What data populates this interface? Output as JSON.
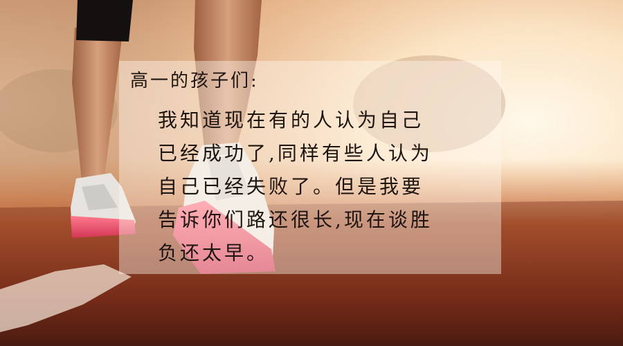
{
  "photo": {
    "subject": "runner-feet-on-track-at-sunrise",
    "colors": {
      "sky_glow": "#fff6e6",
      "haze": "#f2c79a",
      "track": "#b04a2a",
      "track_dark": "#3a1a10",
      "shoe_sole": "#f0506e",
      "shoe_body": "#e8e4e0",
      "skin": "#c98a64"
    }
  },
  "note": {
    "salutation": "高一的孩子们:",
    "lines": [
      "我知道现在有的人认为自己",
      "已经成功了,同样有些人认为",
      "自己已经失败了。但是我要",
      "告诉你们路还很长,现在谈胜",
      "负还太早。"
    ]
  }
}
